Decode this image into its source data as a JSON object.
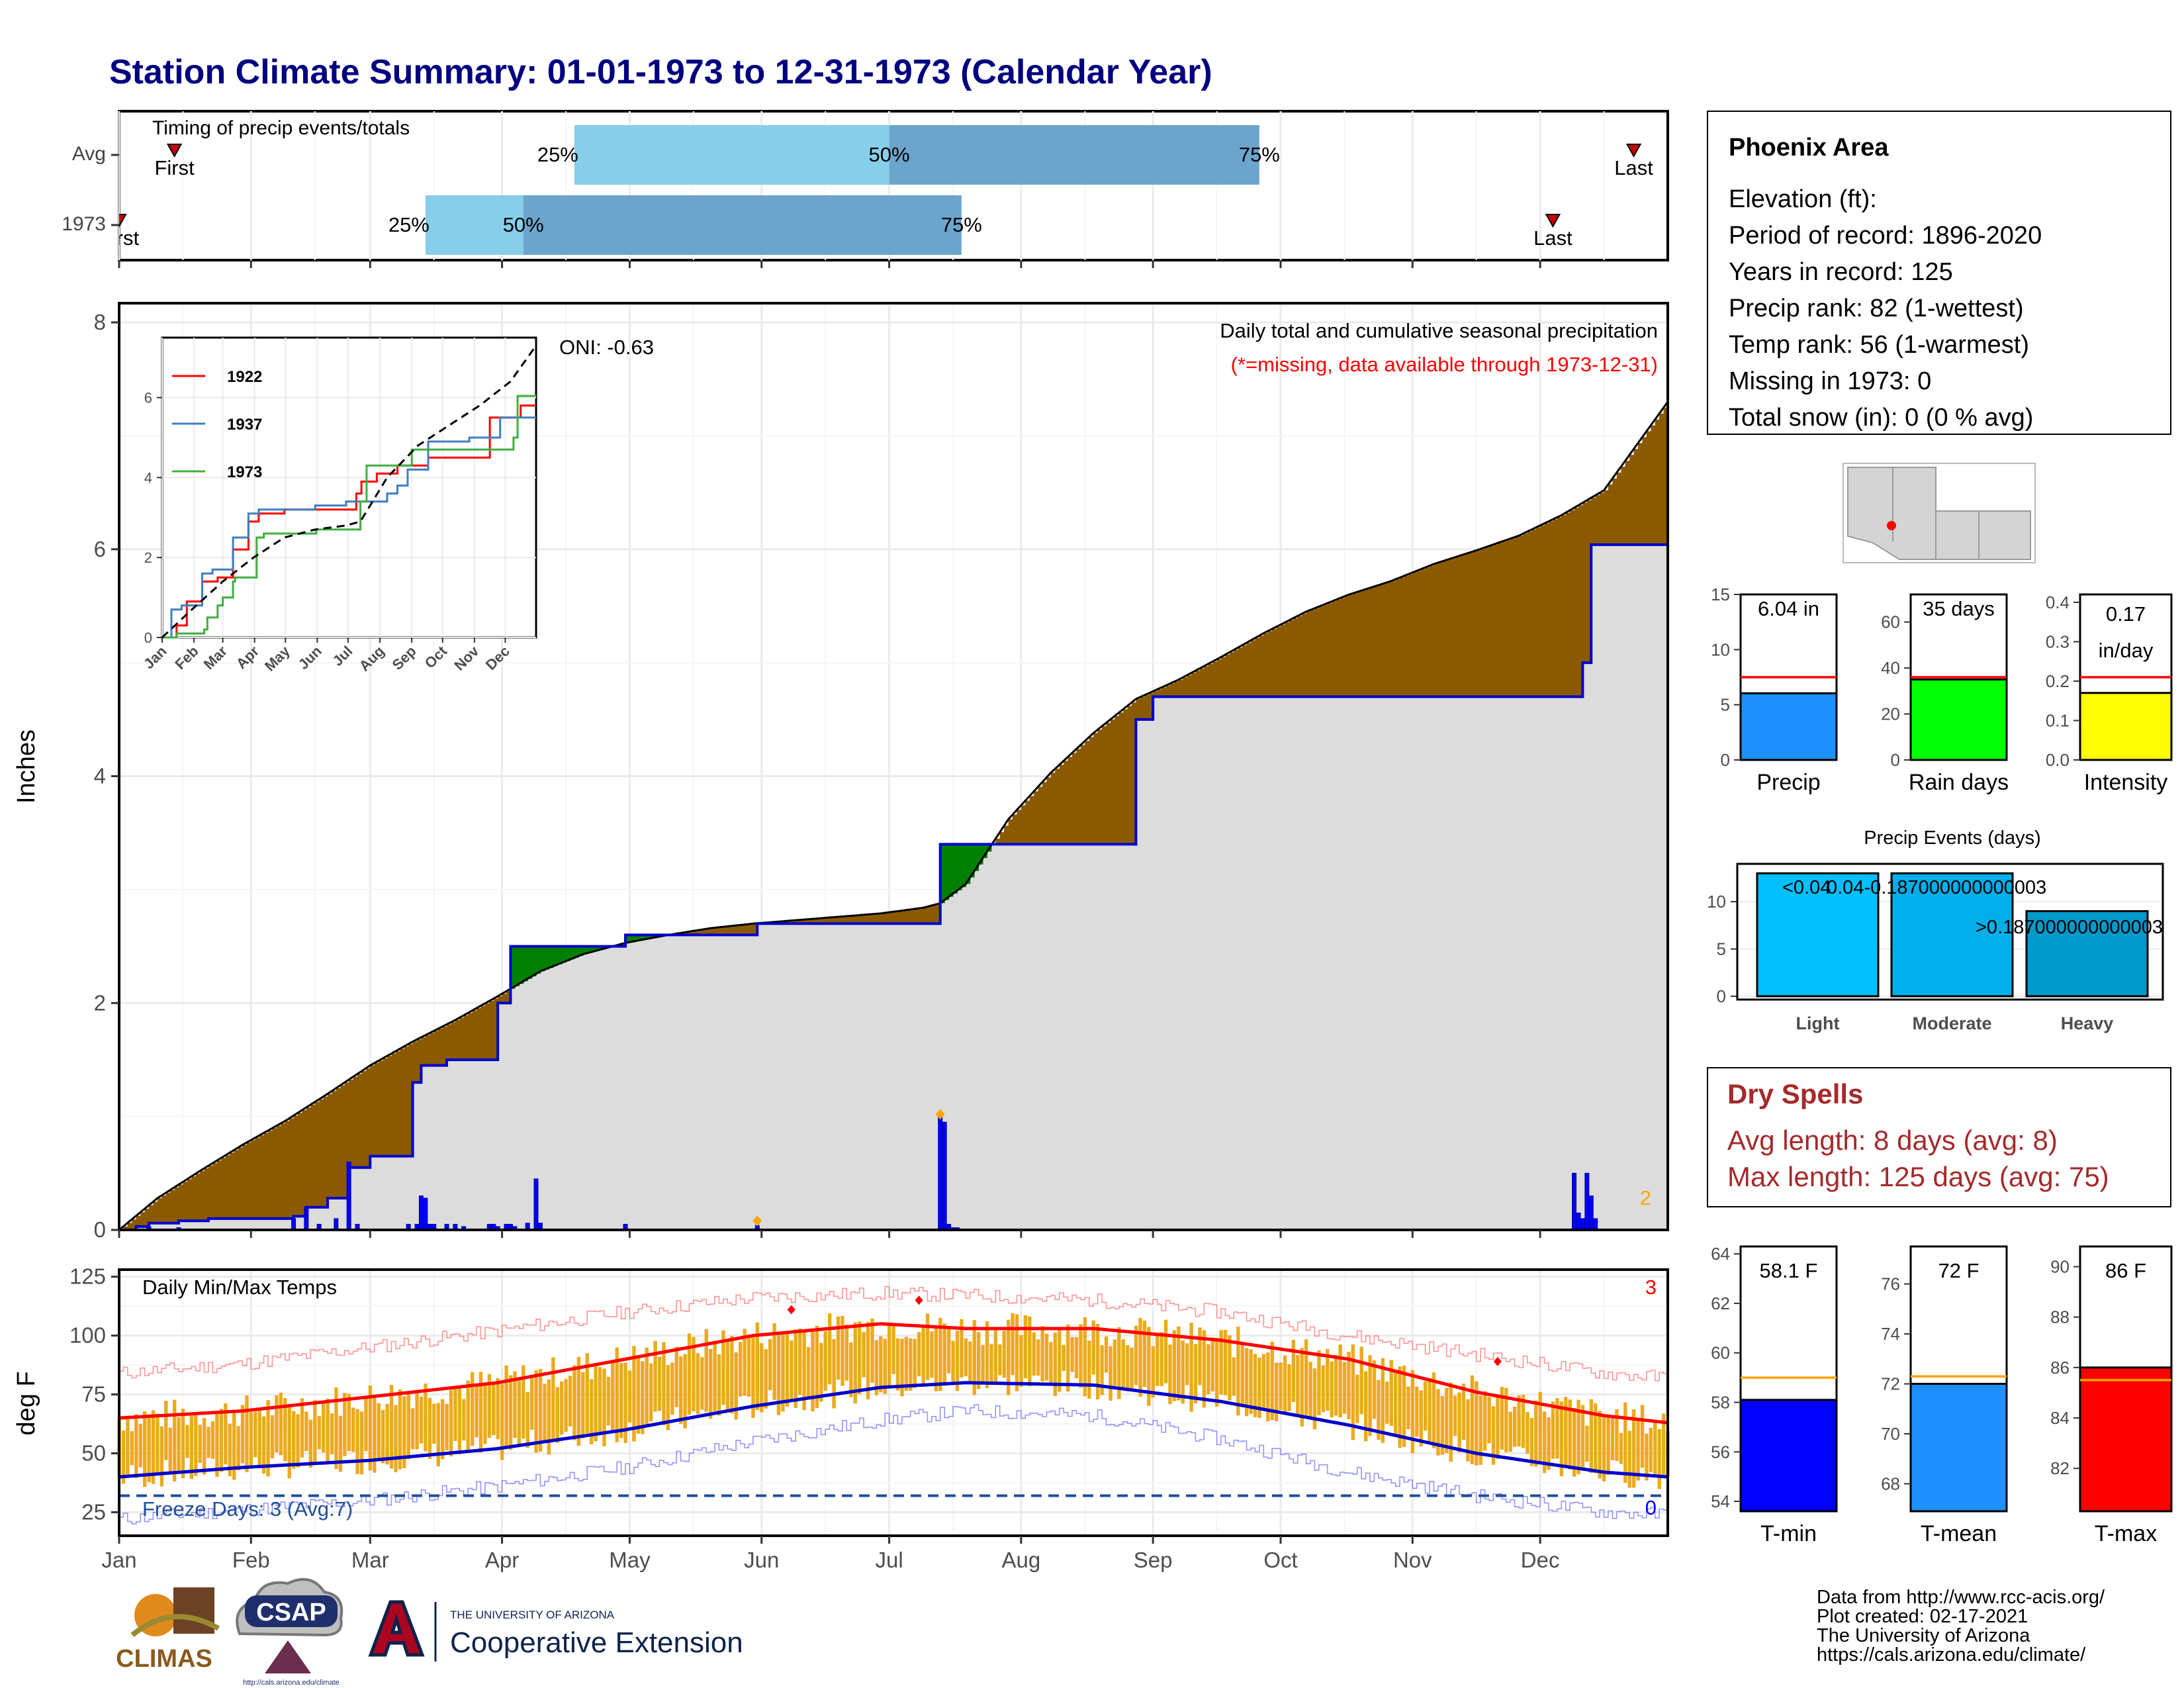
{
  "header": {
    "title": "Station Climate Summary: 01-01-1973 to 12-31-1973 (Calendar Year)"
  },
  "colors": {
    "title": "#000080",
    "green": "#008000",
    "brown": "#8B5A00",
    "gray_fill": "#DCDCDC",
    "blue": "#0000FF",
    "light_blue": "#87CEEB",
    "mid_blue": "#6CA5CC",
    "orange": "#EBAA1E",
    "red": "#FF0000",
    "dry_spell": "#A52A2A"
  },
  "timing": {
    "label": "Timing of precip events/totals",
    "rows": [
      "Avg",
      "1973"
    ],
    "avg": {
      "first_label": "First",
      "last_label": "Last",
      "q25_label": "25%",
      "q50_label": "50%",
      "q75_label": "75%",
      "first_day": 14,
      "q25_day": 108,
      "q50_day": 182,
      "q75_day": 269,
      "last_day": 357
    },
    "y1973": {
      "first_label": "First",
      "last_label": "Last",
      "q25_label": "25%",
      "q50_label": "50%",
      "q75_label": "75%",
      "first_day": 1,
      "q25_day": 73,
      "q50_day": 96,
      "q75_day": 199,
      "last_day": 338
    }
  },
  "months": [
    "Jan",
    "Feb",
    "Mar",
    "Apr",
    "May",
    "Jun",
    "Jul",
    "Aug",
    "Sep",
    "Oct",
    "Nov",
    "Dec"
  ],
  "month_start_days": [
    1,
    32,
    60,
    91,
    121,
    152,
    182,
    213,
    244,
    274,
    305,
    335
  ],
  "precip_panel": {
    "y_label": "Inches",
    "y_ticks": [
      "0",
      "2",
      "4",
      "6",
      "8"
    ],
    "title": "Daily total and cumulative seasonal precipitation",
    "subtitle": "(*=missing, data available through 1973-12-31)",
    "oni": "ONI: -0.63",
    "corner_count": "2",
    "ylim": [
      0,
      8
    ]
  },
  "chart_data": [
    {
      "type": "area",
      "title": "Daily total and cumulative seasonal precipitation",
      "ylabel": "Inches",
      "x_axis": "day of year 1973",
      "ylim": [
        0,
        8
      ],
      "series": [
        {
          "name": "average cumulative",
          "x": [
            1,
            10,
            20,
            30,
            40,
            50,
            60,
            70,
            80,
            90,
            100,
            110,
            120,
            130,
            140,
            150,
            160,
            170,
            180,
            190,
            194,
            200,
            210,
            220,
            230,
            240,
            250,
            260,
            270,
            280,
            290,
            300,
            310,
            320,
            330,
            340,
            350,
            365
          ],
          "values": [
            0,
            0.28,
            0.52,
            0.75,
            0.96,
            1.2,
            1.45,
            1.66,
            1.85,
            2.06,
            2.28,
            2.43,
            2.53,
            2.6,
            2.66,
            2.7,
            2.73,
            2.76,
            2.79,
            2.84,
            2.88,
            3.05,
            3.62,
            4.03,
            4.38,
            4.68,
            4.85,
            5.05,
            5.26,
            5.45,
            5.6,
            5.72,
            5.87,
            5.99,
            6.12,
            6.3,
            6.52,
            7.3
          ]
        },
        {
          "name": "1973 cumulative",
          "x": [
            1,
            5,
            8,
            15,
            22,
            42,
            45,
            50,
            55,
            60,
            70,
            72,
            78,
            82,
            85,
            90,
            93,
            120,
            150,
            151,
            190,
            194,
            195,
            214,
            240,
            244,
            340,
            343,
            345,
            347,
            365
          ],
          "values": [
            0,
            0.03,
            0.06,
            0.08,
            0.1,
            0.12,
            0.2,
            0.28,
            0.55,
            0.65,
            1.3,
            1.45,
            1.5,
            1.5,
            1.5,
            2.0,
            2.5,
            2.6,
            2.6,
            2.7,
            2.7,
            3.4,
            3.4,
            3.4,
            4.5,
            4.7,
            4.7,
            4.7,
            5.0,
            6.04,
            6.04
          ]
        },
        {
          "name": "daily precip",
          "type": "bar",
          "x": [
            8,
            15,
            42,
            45,
            48,
            52,
            55,
            57,
            69,
            71,
            72,
            73,
            74,
            75,
            78,
            80,
            82,
            88,
            89,
            90,
            92,
            93,
            94,
            97,
            99,
            100,
            120,
            151,
            194,
            195,
            196,
            197,
            198,
            343,
            344,
            345,
            346,
            347,
            348
          ],
          "values": [
            0.03,
            0.02,
            0.1,
            0.2,
            0.05,
            0.1,
            0.6,
            0.05,
            0.05,
            0.05,
            0.3,
            0.28,
            0.05,
            0.05,
            0.05,
            0.05,
            0.03,
            0.05,
            0.05,
            0.03,
            0.05,
            0.05,
            0.03,
            0.06,
            0.45,
            0.06,
            0.05,
            0.04,
            1.0,
            0.95,
            0.05,
            0.02,
            0.02,
            0.5,
            0.15,
            0.1,
            0.5,
            0.3,
            0.1
          ]
        }
      ],
      "markers": [
        {
          "x": 151,
          "y": 0.08
        },
        {
          "x": 194,
          "y": 1.02
        }
      ]
    },
    {
      "type": "line",
      "title": "",
      "inset": true,
      "categories": [
        "Jan",
        "Feb",
        "Mar",
        "Apr",
        "May",
        "Jun",
        "Jul",
        "Aug",
        "Sep",
        "Oct",
        "Nov",
        "Dec"
      ],
      "y_ticks": [
        "0",
        "2",
        "4",
        "6"
      ],
      "ylim": [
        0,
        7.5
      ],
      "series": [
        {
          "name": "1922",
          "x": [
            1,
            15,
            25,
            40,
            55,
            70,
            85,
            95,
            120,
            150,
            180,
            190,
            195,
            210,
            230,
            260,
            300,
            310,
            320,
            340,
            350,
            355,
            365
          ],
          "values": [
            0,
            0.3,
            0.9,
            1.4,
            1.5,
            2.2,
            2.9,
            3.1,
            3.2,
            3.2,
            3.2,
            3.6,
            3.9,
            4.1,
            4.3,
            4.5,
            4.5,
            4.5,
            5.5,
            5.5,
            5.8,
            5.8,
            5.8
          ]
        },
        {
          "name": "1937",
          "x": [
            1,
            10,
            20,
            40,
            50,
            70,
            85,
            95,
            120,
            150,
            180,
            200,
            220,
            230,
            240,
            260,
            280,
            300,
            320,
            330,
            340,
            365
          ],
          "values": [
            0,
            0.7,
            0.8,
            1.6,
            1.7,
            2.5,
            3.1,
            3.2,
            3.2,
            3.3,
            3.4,
            3.4,
            3.6,
            3.8,
            4.2,
            4.9,
            4.9,
            5.0,
            5.0,
            5.5,
            5.5,
            5.5
          ]
        },
        {
          "name": "1973",
          "x": [
            1,
            15,
            42,
            45,
            55,
            60,
            70,
            72,
            93,
            100,
            151,
            190,
            194,
            200,
            244,
            280,
            320,
            330,
            343,
            347,
            350,
            365
          ],
          "values": [
            0,
            0.1,
            0.2,
            0.5,
            0.8,
            1.0,
            1.4,
            1.5,
            2.5,
            2.6,
            2.7,
            2.7,
            3.4,
            4.3,
            4.7,
            4.7,
            4.7,
            4.7,
            5.0,
            6.04,
            6.04,
            6.04
          ]
        },
        {
          "name": "avg",
          "x": [
            1,
            30,
            60,
            90,
            120,
            150,
            180,
            194,
            220,
            250,
            280,
            310,
            340,
            365
          ],
          "values": [
            0,
            0.7,
            1.4,
            2.0,
            2.5,
            2.7,
            2.8,
            2.9,
            4.0,
            4.8,
            5.3,
            5.8,
            6.4,
            7.3
          ]
        }
      ]
    },
    {
      "type": "line",
      "title": "Daily Min/Max Temps",
      "ylabel": "deg F",
      "ylim": [
        15,
        128
      ],
      "y_ticks": [
        "25",
        "50",
        "75",
        "100",
        "125"
      ],
      "series": [
        {
          "name": "normal max",
          "x": [
            1,
            30,
            60,
            90,
            120,
            150,
            180,
            200,
            230,
            260,
            290,
            320,
            350,
            365
          ],
          "values": [
            65,
            68,
            74,
            80,
            90,
            100,
            105,
            103,
            103,
            98,
            90,
            76,
            66,
            63
          ]
        },
        {
          "name": "normal min",
          "x": [
            1,
            30,
            60,
            90,
            120,
            150,
            180,
            200,
            230,
            260,
            290,
            320,
            350,
            365
          ],
          "values": [
            40,
            44,
            47,
            52,
            60,
            70,
            78,
            80,
            79,
            72,
            62,
            50,
            42,
            40
          ]
        },
        {
          "name": "record high",
          "x": [
            1,
            30,
            60,
            90,
            120,
            150,
            180,
            200,
            230,
            260,
            290,
            320,
            350,
            365
          ],
          "values": [
            84,
            88,
            95,
            102,
            110,
            116,
            118,
            117,
            115,
            110,
            100,
            92,
            84,
            82
          ]
        },
        {
          "name": "record low",
          "x": [
            1,
            30,
            60,
            90,
            120,
            150,
            180,
            200,
            230,
            260,
            290,
            320,
            350,
            365
          ],
          "values": [
            22,
            26,
            30,
            36,
            44,
            55,
            64,
            68,
            66,
            56,
            42,
            32,
            25,
            24
          ]
        }
      ],
      "annotations": {
        "freeze_line": 32,
        "freeze_text": "Freeze Days: 3 (Avg:7)",
        "top_right": "3",
        "bottom_right": "0"
      }
    },
    {
      "type": "bar",
      "title": "",
      "categories": [
        "Precip"
      ],
      "values": [
        6.04
      ],
      "average": 7.5,
      "ylim": [
        0,
        15
      ],
      "y_ticks": [
        "0",
        "5",
        "10",
        "15"
      ],
      "label": "6.04 in"
    },
    {
      "type": "bar",
      "title": "",
      "categories": [
        "Rain days"
      ],
      "values": [
        35
      ],
      "average": 36,
      "ylim": [
        0,
        72
      ],
      "y_ticks": [
        "0",
        "20",
        "40",
        "60"
      ],
      "label": "35 days"
    },
    {
      "type": "bar",
      "title": "",
      "categories": [
        "Intensity"
      ],
      "values": [
        0.17
      ],
      "average": 0.21,
      "ylim": [
        0,
        0.42
      ],
      "y_ticks": [
        "0.0",
        "0.1",
        "0.2",
        "0.3",
        "0.4"
      ],
      "label_line1": "0.17",
      "label_line2": "in/day"
    },
    {
      "type": "bar",
      "title": "Precip Events (days)",
      "categories": [
        "Light",
        "Moderate",
        "Heavy"
      ],
      "values": [
        13,
        13,
        9
      ],
      "ylim": [
        0,
        14
      ],
      "y_ticks": [
        "0",
        "5",
        "10"
      ],
      "bar_labels": [
        "<0.04",
        "0.04-0.187000000000003",
        ">0.187000000000003"
      ]
    },
    {
      "type": "bar",
      "title": "",
      "categories": [
        "T-min"
      ],
      "values": [
        58.1
      ],
      "average": 59.0,
      "ylim": [
        53.6,
        64.3
      ],
      "y_ticks": [
        "54",
        "56",
        "58",
        "60",
        "62",
        "64"
      ],
      "label": "58.1 F"
    },
    {
      "type": "bar",
      "title": "",
      "categories": [
        "T-mean"
      ],
      "values": [
        72
      ],
      "average": 72.3,
      "ylim": [
        66.9,
        77.5
      ],
      "y_ticks": [
        "68",
        "70",
        "72",
        "74",
        "76"
      ],
      "label": "72 F"
    },
    {
      "type": "bar",
      "title": "",
      "categories": [
        "T-max"
      ],
      "values": [
        86
      ],
      "average": 85.5,
      "ylim": [
        80.3,
        90.8
      ],
      "y_ticks": [
        "82",
        "84",
        "86",
        "88",
        "90"
      ],
      "label": "86 F"
    }
  ],
  "info_box": {
    "station": "Phoenix Area",
    "lines": [
      "Elevation (ft):",
      "Period of record: 1896-2020",
      "Years in record: 125",
      "Precip rank: 82 (1-wettest)",
      "Temp rank: 56 (1-warmest)",
      "Missing in 1973: 0",
      "Total snow (in): 0 (0 % avg)"
    ]
  },
  "dry_spells": {
    "title": "Dry Spells",
    "avg": "Avg length: 8 days (avg: 8)",
    "max": "Max length: 125 days (avg: 75)"
  },
  "footer": {
    "credits": [
      "Data from http://www.rcc-acis.org/",
      "Plot created: 02-17-2021",
      "The University of Arizona",
      "https://cals.arizona.edu/climate/"
    ],
    "climas": "CLIMAS",
    "csap": "CSAP",
    "csap_url": "http://cals.arizona.edu/climate",
    "ua_line1": "THE UNIVERSITY OF ARIZONA",
    "ua_line2": "Cooperative Extension"
  }
}
